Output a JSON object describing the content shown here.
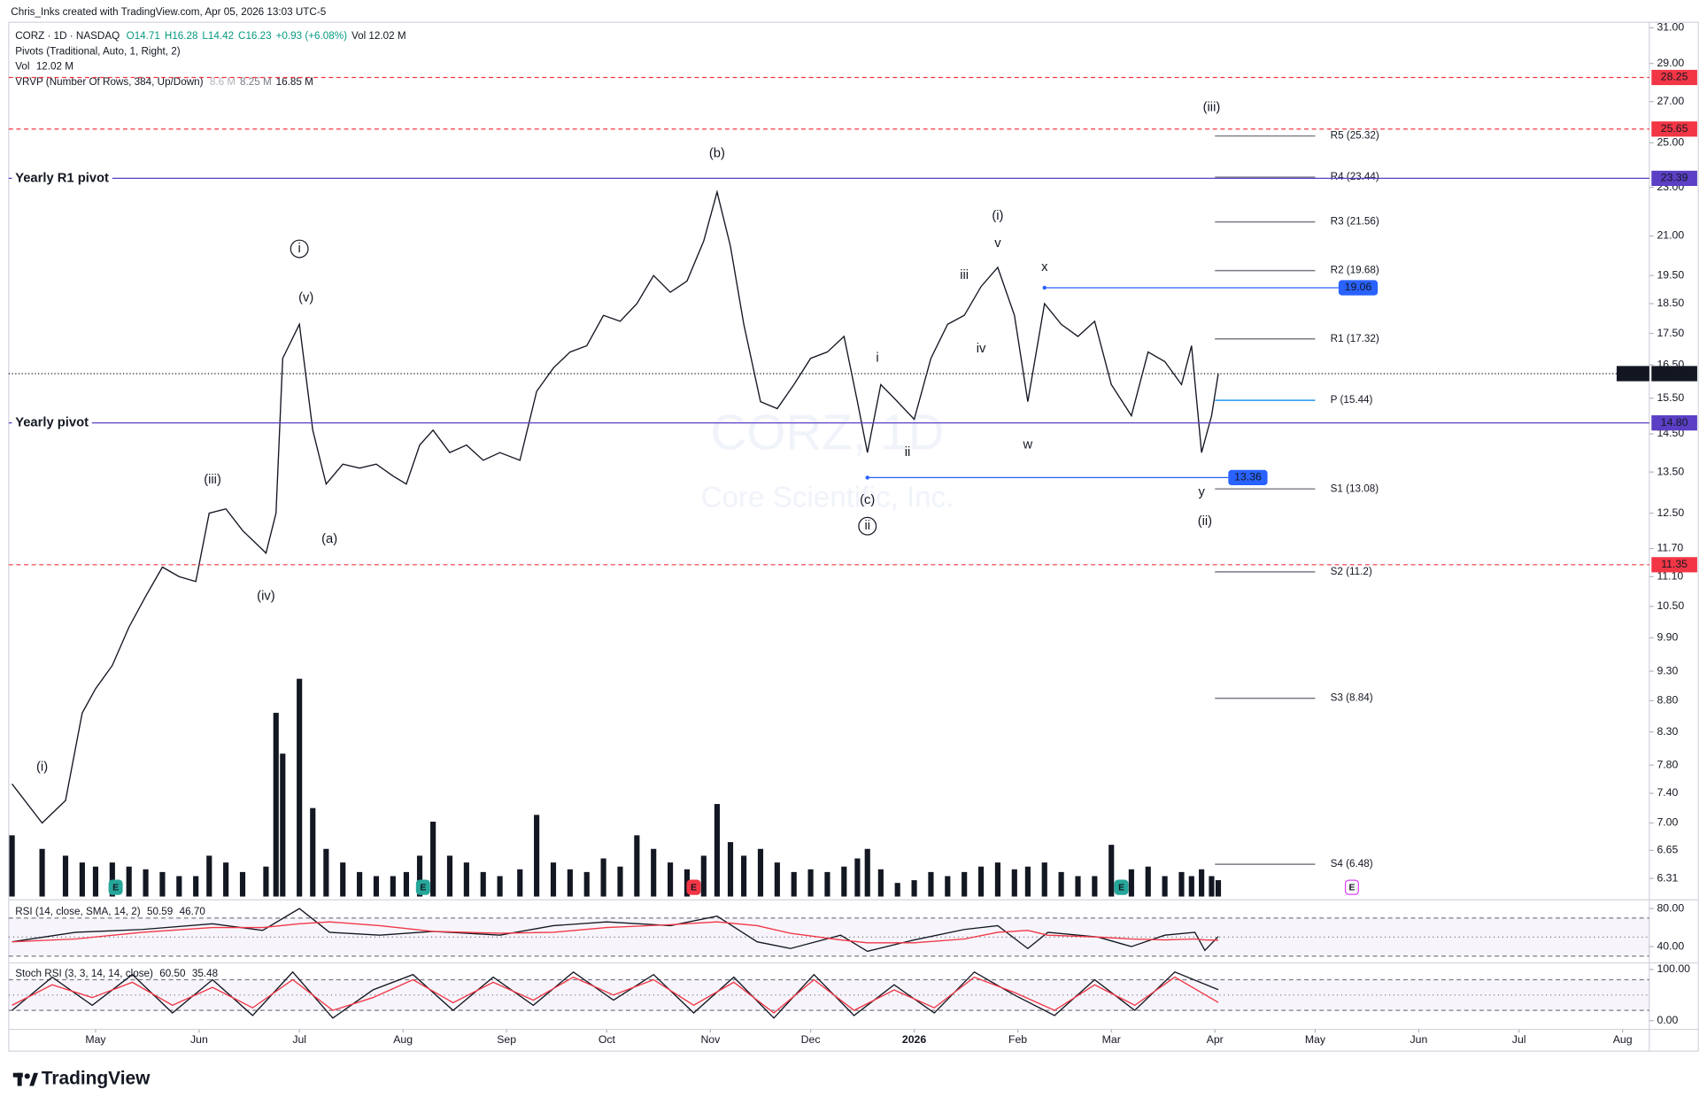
{
  "header": {
    "credit": "Chris_Inks created with TradingView.com, Apr 05, 2026 13:03 UTC-5",
    "symbol": "CORZ · 1D · NASDAQ",
    "ohlc": [
      "O14.71",
      "H16.28",
      "L14.42",
      "C16.23",
      "+0.93 (+6.08%)"
    ],
    "volume_text": "Vol 12.02 M",
    "pivots_study": "Pivots (Traditional, Auto, 1, Right, 2)",
    "vol_study": "Vol",
    "vol_value": "12.02 M",
    "vrvp_study": "VRVP (Number Of Rows, 384, Up/Down)",
    "vrvp_values": [
      "8.6 M",
      "8.25 M",
      "16.85 M"
    ],
    "watermark": "CORZ, 1D",
    "watermark_name": "Core Scientific, Inc."
  },
  "footer": {
    "brand": "TradingView"
  },
  "chart_data": [
    {
      "type": "line",
      "log": true,
      "grid": false,
      "x": [
        "2025-04-06",
        "2025-04-15",
        "2025-04-22",
        "2025-04-27",
        "2025-05-01",
        "2025-05-06",
        "2025-05-11",
        "2025-05-16",
        "2025-05-21",
        "2025-05-26",
        "2025-05-31",
        "2025-06-04",
        "2025-06-09",
        "2025-06-14",
        "2025-06-21",
        "2025-06-24",
        "2025-06-26",
        "2025-07-01",
        "2025-07-05",
        "2025-07-09",
        "2025-07-14",
        "2025-07-19",
        "2025-07-24",
        "2025-07-29",
        "2025-08-02",
        "2025-08-06",
        "2025-08-10",
        "2025-08-15",
        "2025-08-20",
        "2025-08-25",
        "2025-08-30",
        "2025-09-05",
        "2025-09-10",
        "2025-09-15",
        "2025-09-20",
        "2025-09-25",
        "2025-09-30",
        "2025-10-05",
        "2025-10-10",
        "2025-10-15",
        "2025-10-20",
        "2025-10-25",
        "2025-10-30",
        "2025-11-03",
        "2025-11-07",
        "2025-11-11",
        "2025-11-16",
        "2025-11-21",
        "2025-11-26",
        "2025-12-01",
        "2025-12-06",
        "2025-12-11",
        "2025-12-15",
        "2025-12-18",
        "2025-12-22",
        "2025-12-27",
        "2026-01-01",
        "2026-01-06",
        "2026-01-11",
        "2026-01-16",
        "2026-01-21",
        "2026-01-26",
        "2026-01-31",
        "2026-02-04",
        "2026-02-09",
        "2026-02-14",
        "2026-02-19",
        "2026-02-24",
        "2026-03-01",
        "2026-03-07",
        "2026-03-12",
        "2026-03-17",
        "2026-03-22",
        "2026-03-25",
        "2026-03-28",
        "2026-03-31",
        "2026-04-02"
      ],
      "series": [
        {
          "name": "CORZ",
          "color": "#131722",
          "values": [
            7.53,
            7.0,
            7.3,
            8.6,
            9.0,
            9.4,
            10.1,
            10.7,
            11.3,
            11.1,
            11.0,
            12.5,
            12.6,
            12.1,
            11.6,
            12.5,
            16.7,
            17.8,
            14.6,
            13.2,
            13.7,
            13.6,
            13.7,
            13.4,
            13.2,
            14.2,
            14.6,
            14.0,
            14.2,
            13.8,
            14.0,
            13.8,
            15.7,
            16.4,
            16.9,
            17.1,
            18.1,
            17.9,
            18.5,
            19.5,
            18.9,
            19.3,
            20.8,
            22.8,
            20.6,
            17.8,
            15.4,
            15.2,
            15.9,
            16.7,
            16.9,
            17.4,
            15.4,
            14.0,
            15.9,
            15.4,
            14.9,
            16.7,
            17.8,
            18.1,
            19.1,
            19.8,
            18.1,
            15.4,
            18.5,
            17.8,
            17.4,
            17.9,
            15.9,
            15.0,
            16.9,
            16.6,
            15.9,
            17.1,
            14.0,
            15.0,
            16.23
          ]
        }
      ],
      "volume": {
        "color": "#131722",
        "ylim": [
          0,
          160
        ],
        "values": [
          45,
          35,
          30,
          25,
          22,
          25,
          22,
          20,
          18,
          15,
          15,
          30,
          25,
          18,
          22,
          135,
          105,
          160,
          65,
          35,
          25,
          18,
          15,
          15,
          18,
          30,
          55,
          30,
          25,
          18,
          15,
          20,
          60,
          25,
          20,
          18,
          28,
          22,
          45,
          35,
          25,
          20,
          30,
          68,
          40,
          30,
          35,
          25,
          18,
          20,
          18,
          22,
          28,
          35,
          20,
          10,
          12,
          18,
          15,
          18,
          22,
          25,
          20,
          22,
          25,
          18,
          15,
          15,
          38,
          20,
          22,
          15,
          18,
          15,
          20,
          15,
          12.02
        ]
      },
      "xlim": [
        "2025-04-05",
        "2026-08-09"
      ],
      "xticks": [
        {
          "value": "2025-05-01",
          "label": "May"
        },
        {
          "value": "2025-06-01",
          "label": "Jun"
        },
        {
          "value": "2025-07-01",
          "label": "Jul"
        },
        {
          "value": "2025-08-01",
          "label": "Aug"
        },
        {
          "value": "2025-09-01",
          "label": "Sep"
        },
        {
          "value": "2025-10-01",
          "label": "Oct"
        },
        {
          "value": "2025-11-01",
          "label": "Nov"
        },
        {
          "value": "2025-12-01",
          "label": "Dec"
        },
        {
          "value": "2026-01-01",
          "label": "2026",
          "bold": true
        },
        {
          "value": "2026-02-01",
          "label": "Feb"
        },
        {
          "value": "2026-03-01",
          "label": "Mar"
        },
        {
          "value": "2026-04-01",
          "label": "Apr"
        },
        {
          "value": "2026-05-01",
          "label": "May"
        },
        {
          "value": "2026-06-01",
          "label": "Jun"
        },
        {
          "value": "2026-07-01",
          "label": "Jul"
        },
        {
          "value": "2026-08-01",
          "label": "Aug"
        }
      ],
      "ylim": [
        6.1,
        31.45
      ],
      "yticks": [
        {
          "value": 31,
          "label": "31.00"
        },
        {
          "value": 29,
          "label": "29.00"
        },
        {
          "value": 27,
          "label": "27.00"
        },
        {
          "value": 25,
          "label": "25.00"
        },
        {
          "value": 23,
          "label": "23.00"
        },
        {
          "value": 21,
          "label": "21.00"
        },
        {
          "value": 19.5,
          "label": "19.50"
        },
        {
          "value": 18.5,
          "label": "18.50"
        },
        {
          "value": 17.5,
          "label": "17.50"
        },
        {
          "value": 16.5,
          "label": "16.50"
        },
        {
          "value": 15.5,
          "label": "15.50"
        },
        {
          "value": 14.5,
          "label": "14.50"
        },
        {
          "value": 13.5,
          "label": "13.50"
        },
        {
          "value": 12.5,
          "label": "12.50"
        },
        {
          "value": 11.7,
          "label": "11.70"
        },
        {
          "value": 11.1,
          "label": "11.10"
        },
        {
          "value": 10.5,
          "label": "10.50"
        },
        {
          "value": 9.9,
          "label": "9.90"
        },
        {
          "value": 9.3,
          "label": "9.30"
        },
        {
          "value": 8.8,
          "label": "8.80"
        },
        {
          "value": 8.3,
          "label": "8.30"
        },
        {
          "value": 7.8,
          "label": "7.80"
        },
        {
          "value": 7.4,
          "label": "7.40"
        },
        {
          "value": 7,
          "label": "7.00"
        },
        6.65,
        6.31
      ],
      "hlines": [
        {
          "value": 28.25,
          "color": "#f23645",
          "dash": true
        },
        {
          "value": 25.65,
          "color": "#f23645",
          "dash": true
        },
        {
          "value": 23.39,
          "color": "#5b3fc4",
          "text": "Yearly R1 pivot"
        },
        {
          "value": 14.8,
          "label": "14.80",
          "color": "#5b3fc4",
          "text": "Yearly pivot"
        },
        {
          "value": 11.35,
          "color": "#f23645",
          "dash": true
        },
        {
          "value": 19.06,
          "color": "#2962ff",
          "start": "2026-02-09",
          "end": "2026-05-08"
        },
        {
          "value": 13.36,
          "color": "#2962ff",
          "start": "2025-12-18",
          "end": "2026-04-05"
        }
      ],
      "last_price": {
        "name": "CORZ",
        "value": 16.23,
        "color": "#131722"
      },
      "pivots": {
        "start": "2026-04-01",
        "end": "2026-05-01",
        "levels": [
          {
            "value": 25.32,
            "label": "R5 (25.32)",
            "color": "#787b86"
          },
          {
            "value": 23.44,
            "label": "R4 (23.44)",
            "color": "#787b86"
          },
          {
            "value": 21.56,
            "label": "R3 (21.56)",
            "color": "#787b86"
          },
          {
            "value": 19.68,
            "label": "R2 (19.68)",
            "color": "#787b86"
          },
          {
            "value": 17.32,
            "label": "R1 (17.32)",
            "color": "#787b86"
          },
          {
            "value": 15.44,
            "label": "P (15.44)",
            "color": "#2196f3"
          },
          {
            "value": 13.08,
            "label": "S1 (13.08)",
            "color": "#787b86"
          },
          {
            "value": 11.2,
            "label": "S2 (11.2)",
            "color": "#787b86"
          },
          {
            "value": 8.84,
            "label": "S3 (8.84)",
            "color": "#787b86"
          },
          {
            "value": 6.48,
            "label": "S4 (6.48)",
            "color": "#787b86"
          }
        ]
      },
      "wave_labels": [
        {
          "text": "(i)",
          "x": "2025-04-15",
          "y": 7.77
        },
        {
          "text": "(iii)",
          "x": "2025-06-05",
          "y": 13.3
        },
        {
          "text": "(iv)",
          "x": "2025-06-21",
          "y": 10.7
        },
        {
          "text": "(v)",
          "x": "2025-07-03",
          "y": 18.7
        },
        {
          "text": "i",
          "x": "2025-07-01",
          "y": 20.5,
          "circled": true
        },
        {
          "text": "(a)",
          "x": "2025-07-10",
          "y": 11.9
        },
        {
          "text": "(b)",
          "x": "2025-11-03",
          "y": 24.5
        },
        {
          "text": "(c)",
          "x": "2025-12-18",
          "y": 12.8
        },
        {
          "text": "ii",
          "x": "2025-12-18",
          "y": 12.2,
          "circled": true
        },
        {
          "text": "i",
          "x": "2025-12-21",
          "y": 16.7
        },
        {
          "text": "ii",
          "x": "2025-12-30",
          "y": 14.0
        },
        {
          "text": "iii",
          "x": "2026-01-16",
          "y": 19.5
        },
        {
          "text": "iv",
          "x": "2026-01-21",
          "y": 17.0
        },
        {
          "text": "v",
          "x": "2026-01-26",
          "y": 20.7
        },
        {
          "text": "(i)",
          "x": "2026-01-26",
          "y": 21.8
        },
        {
          "text": "w",
          "x": "2026-02-04",
          "y": 14.2
        },
        {
          "text": "x",
          "x": "2026-02-09",
          "y": 19.8
        },
        {
          "text": "y",
          "x": "2026-03-28",
          "y": 13.0
        },
        {
          "text": "(ii)",
          "x": "2026-03-29",
          "y": 12.3
        },
        {
          "text": "(iii)",
          "x": "2026-03-31",
          "y": 26.7
        }
      ],
      "events": {
        "label": "E",
        "items": [
          {
            "x": "2025-05-07",
            "color": "#26a69a"
          },
          {
            "x": "2025-08-07",
            "color": "#26a69a"
          },
          {
            "x": "2025-10-27",
            "color": "#f23645"
          },
          {
            "x": "2026-03-04",
            "color": "#26a69a"
          },
          {
            "x": "2026-05-12",
            "color": "#e040fb"
          }
        ]
      }
    },
    {
      "type": "line",
      "title": "RSI (14, close, SMA, 14, 2)",
      "legend_values": [
        "50.59",
        "46.70"
      ],
      "x": [
        "2025-04-06",
        "2025-04-25",
        "2025-05-15",
        "2025-06-05",
        "2025-06-20",
        "2025-07-01",
        "2025-07-10",
        "2025-07-25",
        "2025-08-10",
        "2025-08-30",
        "2025-09-15",
        "2025-10-01",
        "2025-10-20",
        "2025-11-03",
        "2025-11-15",
        "2025-11-25",
        "2025-12-10",
        "2025-12-18",
        "2026-01-01",
        "2026-01-16",
        "2026-01-26",
        "2026-02-04",
        "2026-02-10",
        "2026-02-25",
        "2026-03-07",
        "2026-03-17",
        "2026-03-26",
        "2026-03-29",
        "2026-04-02"
      ],
      "series": [
        {
          "color": "#131722",
          "values": [
            45,
            55,
            58,
            64,
            57,
            80,
            55,
            52,
            56,
            52,
            62,
            66,
            62,
            72,
            45,
            38,
            52,
            35,
            47,
            58,
            62,
            38,
            55,
            50,
            40,
            52,
            55,
            36,
            50.59
          ]
        },
        {
          "color": "#f23645",
          "values": [
            45,
            48,
            55,
            60,
            60,
            64,
            66,
            62,
            56,
            54,
            55,
            60,
            63,
            66,
            62,
            54,
            47,
            44,
            44,
            48,
            55,
            57,
            52,
            50,
            48,
            47,
            48,
            47,
            46.7
          ]
        }
      ],
      "ylim": [
        25.1,
        86.9
      ],
      "yticks": [
        {
          "value": 80,
          "label": "80.00"
        },
        {
          "value": 40,
          "label": "40.00"
        }
      ],
      "bands": [
        70,
        50,
        30
      ]
    },
    {
      "type": "line",
      "title": "Stoch RSI (3, 3, 14, 14, close)",
      "legend_values": [
        "60.50",
        "35.48"
      ],
      "x": [
        "2025-04-06",
        "2025-04-18",
        "2025-04-30",
        "2025-05-12",
        "2025-05-24",
        "2025-06-05",
        "2025-06-17",
        "2025-06-29",
        "2025-07-11",
        "2025-07-23",
        "2025-08-04",
        "2025-08-16",
        "2025-08-28",
        "2025-09-09",
        "2025-09-21",
        "2025-10-03",
        "2025-10-15",
        "2025-10-27",
        "2025-11-08",
        "2025-11-20",
        "2025-12-02",
        "2025-12-14",
        "2025-12-26",
        "2026-01-07",
        "2026-01-19",
        "2026-01-31",
        "2026-02-12",
        "2026-02-24",
        "2026-03-08",
        "2026-03-20",
        "2026-04-02"
      ],
      "series": [
        {
          "color": "#131722",
          "values": [
            20,
            85,
            30,
            90,
            15,
            80,
            10,
            95,
            5,
            60,
            90,
            20,
            85,
            30,
            95,
            40,
            90,
            15,
            85,
            5,
            90,
            10,
            70,
            15,
            95,
            50,
            10,
            80,
            20,
            95,
            60.5
          ]
        },
        {
          "color": "#f23645",
          "values": [
            30,
            70,
            45,
            75,
            30,
            65,
            25,
            80,
            20,
            45,
            80,
            35,
            75,
            40,
            85,
            50,
            80,
            30,
            75,
            15,
            80,
            20,
            60,
            25,
            85,
            55,
            20,
            70,
            30,
            85,
            35.48
          ]
        }
      ],
      "ylim": [
        -14.9,
        110.6
      ],
      "yticks": [
        {
          "value": 100,
          "label": "100.00"
        },
        {
          "value": 0,
          "label": "0.00"
        }
      ],
      "bands": [
        80,
        50,
        20
      ]
    }
  ]
}
